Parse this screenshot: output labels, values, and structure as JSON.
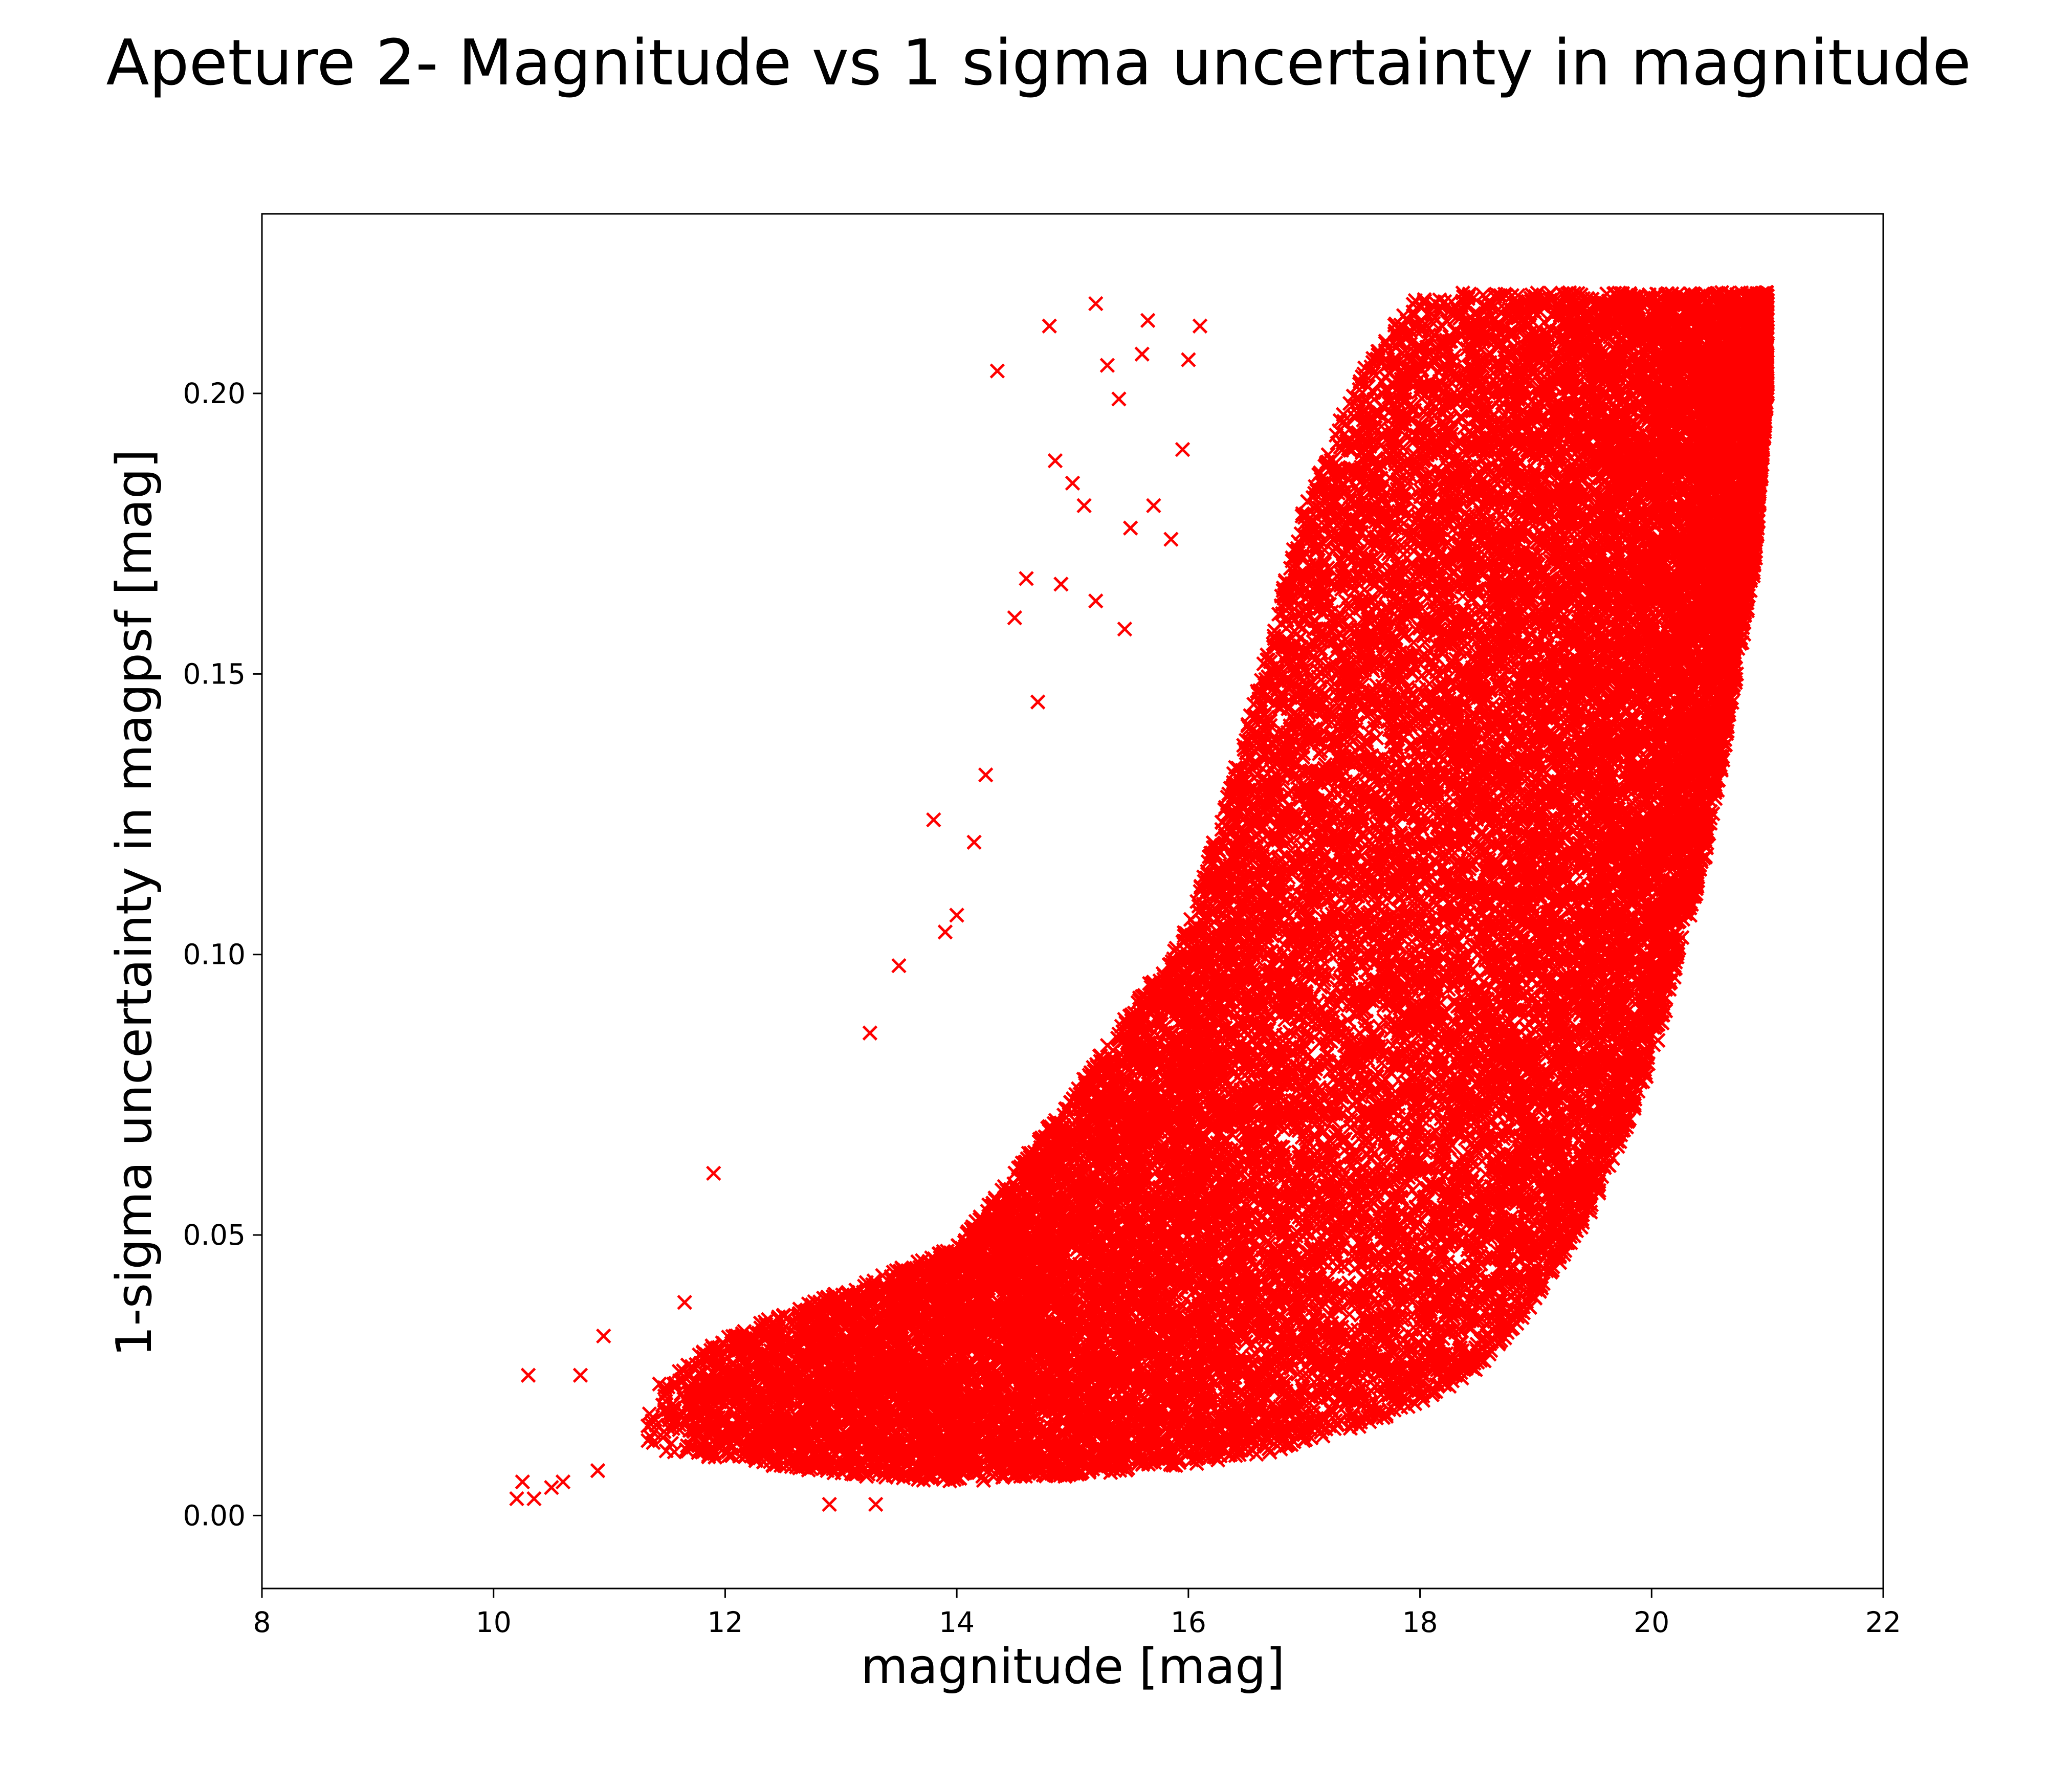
{
  "chart_data": {
    "type": "scatter",
    "title": "Apeture 2- Magnitude vs 1 sigma uncertainty in magnitude",
    "xlabel": "magnitude [mag]",
    "ylabel": "1-sigma uncertainty in magpsf [mag]",
    "xlim": [
      8,
      22
    ],
    "ylim": [
      -0.013,
      0.232
    ],
    "x_ticks": [
      "8",
      "10",
      "12",
      "14",
      "16",
      "18",
      "20",
      "22"
    ],
    "x_tick_values": [
      8,
      10,
      12,
      14,
      16,
      18,
      20,
      22
    ],
    "y_ticks": [
      "0.00",
      "0.05",
      "0.10",
      "0.15",
      "0.20"
    ],
    "y_tick_values": [
      0.0,
      0.05,
      0.1,
      0.15,
      0.2
    ],
    "marker": "x",
    "marker_color": "#ff0000",
    "grid": false,
    "legend": "none",
    "y_cap": 0.218,
    "x_range_of_points": [
      10.2,
      21.1
    ],
    "density_envelope": [
      {
        "x": 11.3,
        "y_low": 0.012,
        "y_high": 0.022
      },
      {
        "x": 12.0,
        "y_low": 0.01,
        "y_high": 0.032
      },
      {
        "x": 13.0,
        "y_low": 0.007,
        "y_high": 0.04
      },
      {
        "x": 14.0,
        "y_low": 0.006,
        "y_high": 0.048
      },
      {
        "x": 15.0,
        "y_low": 0.007,
        "y_high": 0.075
      },
      {
        "x": 16.0,
        "y_low": 0.009,
        "y_high": 0.105
      },
      {
        "x": 16.5,
        "y_low": 0.01,
        "y_high": 0.14
      },
      {
        "x": 17.0,
        "y_low": 0.013,
        "y_high": 0.18
      },
      {
        "x": 17.5,
        "y_low": 0.016,
        "y_high": 0.205
      },
      {
        "x": 18.0,
        "y_low": 0.02,
        "y_high": 0.218
      },
      {
        "x": 18.5,
        "y_low": 0.026,
        "y_high": 0.218
      },
      {
        "x": 19.0,
        "y_low": 0.038,
        "y_high": 0.218
      },
      {
        "x": 19.5,
        "y_low": 0.055,
        "y_high": 0.218
      },
      {
        "x": 20.0,
        "y_low": 0.08,
        "y_high": 0.218
      },
      {
        "x": 20.5,
        "y_low": 0.12,
        "y_high": 0.218
      },
      {
        "x": 20.9,
        "y_low": 0.17,
        "y_high": 0.218
      },
      {
        "x": 21.0,
        "y_low": 0.2,
        "y_high": 0.218
      }
    ],
    "outliers": [
      {
        "x": 10.2,
        "y": 0.003
      },
      {
        "x": 10.25,
        "y": 0.006
      },
      {
        "x": 10.3,
        "y": 0.025
      },
      {
        "x": 10.35,
        "y": 0.003
      },
      {
        "x": 10.5,
        "y": 0.005
      },
      {
        "x": 10.6,
        "y": 0.006
      },
      {
        "x": 10.75,
        "y": 0.025
      },
      {
        "x": 10.95,
        "y": 0.032
      },
      {
        "x": 10.9,
        "y": 0.008
      },
      {
        "x": 11.65,
        "y": 0.038
      },
      {
        "x": 11.9,
        "y": 0.061
      },
      {
        "x": 12.9,
        "y": 0.002
      },
      {
        "x": 13.3,
        "y": 0.002
      },
      {
        "x": 13.25,
        "y": 0.086
      },
      {
        "x": 13.5,
        "y": 0.098
      },
      {
        "x": 13.8,
        "y": 0.124
      },
      {
        "x": 13.9,
        "y": 0.104
      },
      {
        "x": 14.0,
        "y": 0.107
      },
      {
        "x": 14.15,
        "y": 0.12
      },
      {
        "x": 14.25,
        "y": 0.132
      },
      {
        "x": 14.35,
        "y": 0.204
      },
      {
        "x": 14.5,
        "y": 0.16
      },
      {
        "x": 14.6,
        "y": 0.167
      },
      {
        "x": 14.8,
        "y": 0.212
      },
      {
        "x": 14.85,
        "y": 0.188
      },
      {
        "x": 14.9,
        "y": 0.166
      },
      {
        "x": 15.0,
        "y": 0.184
      },
      {
        "x": 15.1,
        "y": 0.18
      },
      {
        "x": 15.2,
        "y": 0.216
      },
      {
        "x": 15.3,
        "y": 0.205
      },
      {
        "x": 15.4,
        "y": 0.199
      },
      {
        "x": 15.5,
        "y": 0.176
      },
      {
        "x": 15.6,
        "y": 0.207
      },
      {
        "x": 15.65,
        "y": 0.213
      },
      {
        "x": 15.7,
        "y": 0.18
      },
      {
        "x": 15.85,
        "y": 0.174
      },
      {
        "x": 15.95,
        "y": 0.19
      },
      {
        "x": 16.0,
        "y": 0.206
      },
      {
        "x": 16.1,
        "y": 0.212
      },
      {
        "x": 15.2,
        "y": 0.163
      },
      {
        "x": 15.45,
        "y": 0.158
      },
      {
        "x": 14.7,
        "y": 0.145
      }
    ]
  }
}
